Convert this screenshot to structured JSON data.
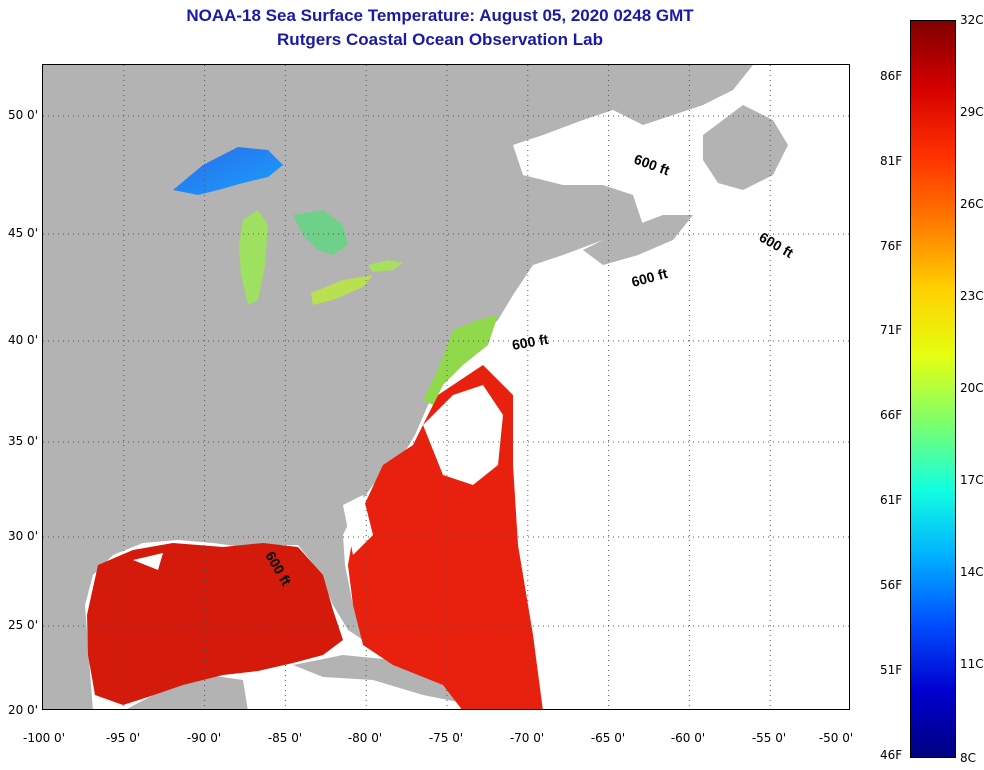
{
  "title": "NOAA-18 Sea Surface Temperature:  August 05, 2020 0248 GMT",
  "subtitle": "Rutgers Coastal Ocean Observation Lab",
  "map": {
    "lon_range": [
      -100,
      -50
    ],
    "lat_range": [
      20,
      52
    ],
    "lat_ticks": [
      {
        "value": 50,
        "label": "50 0'"
      },
      {
        "value": 45,
        "label": "45 0'"
      },
      {
        "value": 40,
        "label": "40 0'"
      },
      {
        "value": 35,
        "label": "35 0'"
      },
      {
        "value": 30,
        "label": "30 0'"
      },
      {
        "value": 25,
        "label": "25 0'"
      },
      {
        "value": 20,
        "label": "20 0'"
      }
    ],
    "lon_ticks": [
      {
        "value": -100,
        "label": "-100 0'"
      },
      {
        "value": -95,
        "label": "-95 0'"
      },
      {
        "value": -90,
        "label": "-90 0'"
      },
      {
        "value": -85,
        "label": "-85 0'"
      },
      {
        "value": -80,
        "label": "-80 0'"
      },
      {
        "value": -75,
        "label": "-75 0'"
      },
      {
        "value": -70,
        "label": "-70 0'"
      },
      {
        "value": -65,
        "label": "-65 0'"
      },
      {
        "value": -60,
        "label": "-60 0'"
      },
      {
        "value": -55,
        "label": "-55 0'"
      },
      {
        "value": -50,
        "label": "-50 0'"
      }
    ],
    "isobath_labels": [
      "600 ft",
      "600 ft",
      "600 ft",
      "600 ft",
      "600 ft"
    ],
    "colors": {
      "land": "#b3b3b3",
      "ocean_no_data": "#ffffff",
      "gulf_stream_warm": "#e8200e",
      "gulf_warm": "#d41a0a",
      "shelf_cool": "#8fd94a",
      "lake_cool": "#2a78e8",
      "lake_mid": "#9ee060"
    }
  },
  "colorbar": {
    "celsius_labels": [
      "32C",
      "29C",
      "26C",
      "23C",
      "20C",
      "17C",
      "14C",
      "11C",
      "8C"
    ],
    "fahrenheit_labels": [
      "86F",
      "81F",
      "76F",
      "71F",
      "66F",
      "61F",
      "56F",
      "51F",
      "46F"
    ],
    "celsius_range": [
      8,
      32
    ],
    "gradient_colors": [
      "#7f0000",
      "#d40000",
      "#ff3000",
      "#ff7a00",
      "#ffd000",
      "#e6ff10",
      "#7dff6a",
      "#12ffe0",
      "#00b0ff",
      "#0050ff",
      "#0000d0",
      "#000080"
    ]
  }
}
